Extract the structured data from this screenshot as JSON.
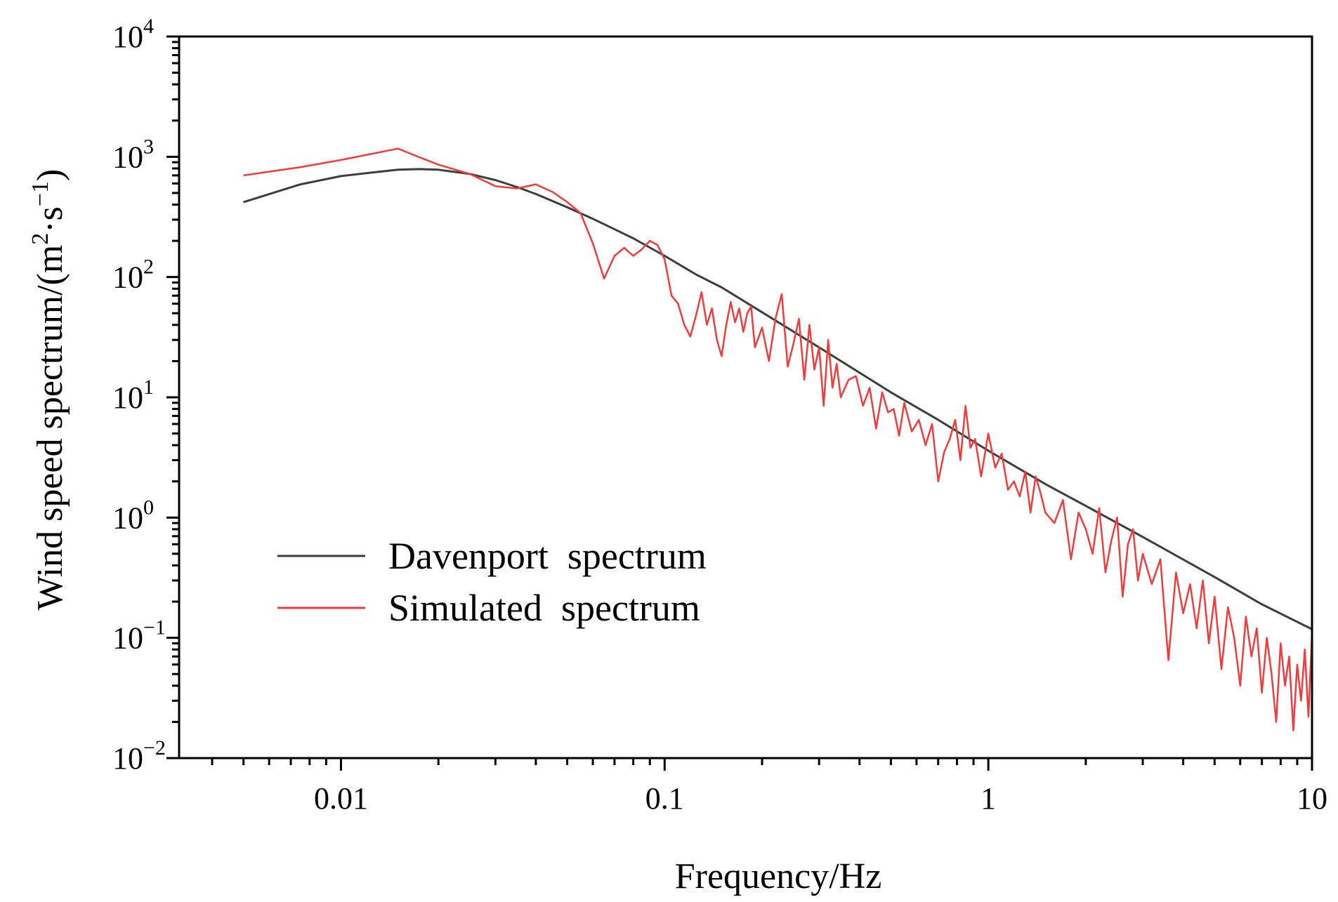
{
  "chart_data": {
    "type": "line",
    "title": "",
    "xlabel": "Frequency/Hz",
    "ylabel_main": "Wind speed spectrum/(m",
    "ylabel_sup1": "2",
    "ylabel_mid": "·s",
    "ylabel_sup2": "−1",
    "ylabel_end": ")",
    "xscale": "log",
    "yscale": "log",
    "xlim": [
      0.003162,
      10
    ],
    "ylim": [
      0.01,
      10000
    ],
    "x_ticks": [
      {
        "value": 0.01,
        "label": "0.01"
      },
      {
        "value": 0.1,
        "label": "0.1"
      },
      {
        "value": 1,
        "label": "1"
      },
      {
        "value": 10,
        "label": "10"
      }
    ],
    "y_ticks": [
      {
        "value": 0.01,
        "base": "10",
        "exp": "−2"
      },
      {
        "value": 0.1,
        "base": "10",
        "exp": "−1"
      },
      {
        "value": 1,
        "base": "10",
        "exp": "0"
      },
      {
        "value": 10,
        "base": "10",
        "exp": "1"
      },
      {
        "value": 100,
        "base": "10",
        "exp": "2"
      },
      {
        "value": 1000,
        "base": "10",
        "exp": "3"
      },
      {
        "value": 10000,
        "base": "10",
        "exp": "4"
      }
    ],
    "legend_position": "lower-left",
    "series": [
      {
        "name": "Davenport  spectrum",
        "color": "#3d3d3d",
        "x": [
          0.005,
          0.0075,
          0.01,
          0.0125,
          0.015,
          0.0175,
          0.02,
          0.025,
          0.03,
          0.035,
          0.04,
          0.05,
          0.06,
          0.08,
          0.1,
          0.125,
          0.15,
          0.2,
          0.3,
          0.5,
          0.7,
          1,
          1.5,
          2,
          3,
          5,
          7,
          10
        ],
        "values": [
          420,
          590,
          690,
          740,
          780,
          790,
          780,
          720,
          640,
          560,
          490,
          380,
          305,
          210,
          150,
          105,
          82,
          51,
          26,
          11,
          6.5,
          3.6,
          1.9,
          1.25,
          0.69,
          0.32,
          0.19,
          0.118
        ]
      },
      {
        "name": "Simulated  spectrum",
        "color": "#f03c3c",
        "x": [
          0.005,
          0.0075,
          0.01,
          0.0125,
          0.015,
          0.0175,
          0.02,
          0.025,
          0.03,
          0.035,
          0.04,
          0.045,
          0.05,
          0.055,
          0.06,
          0.065,
          0.07,
          0.075,
          0.08,
          0.085,
          0.09,
          0.095,
          0.1,
          0.105,
          0.11,
          0.115,
          0.12,
          0.125,
          0.13,
          0.135,
          0.14,
          0.145,
          0.15,
          0.155,
          0.16,
          0.165,
          0.17,
          0.175,
          0.18,
          0.185,
          0.19,
          0.2,
          0.21,
          0.22,
          0.23,
          0.24,
          0.25,
          0.26,
          0.27,
          0.28,
          0.29,
          0.3,
          0.31,
          0.32,
          0.33,
          0.34,
          0.35,
          0.37,
          0.39,
          0.41,
          0.43,
          0.45,
          0.47,
          0.49,
          0.51,
          0.53,
          0.55,
          0.58,
          0.61,
          0.64,
          0.67,
          0.7,
          0.73,
          0.76,
          0.79,
          0.82,
          0.85,
          0.88,
          0.91,
          0.95,
          1.0,
          1.05,
          1.1,
          1.15,
          1.2,
          1.25,
          1.3,
          1.35,
          1.4,
          1.45,
          1.5,
          1.6,
          1.7,
          1.8,
          1.9,
          2.0,
          2.1,
          2.2,
          2.3,
          2.4,
          2.5,
          2.6,
          2.7,
          2.8,
          2.9,
          3.0,
          3.2,
          3.4,
          3.6,
          3.8,
          4.0,
          4.2,
          4.4,
          4.6,
          4.8,
          5.0,
          5.25,
          5.5,
          5.75,
          6.0,
          6.25,
          6.5,
          6.75,
          7.0,
          7.25,
          7.5,
          7.75,
          8.0,
          8.25,
          8.5,
          8.75,
          9.0,
          9.25,
          9.5,
          9.75,
          10.0
        ],
        "values": [
          700,
          820,
          940,
          1060,
          1170,
          990,
          860,
          720,
          570,
          545,
          590,
          510,
          420,
          340,
          190,
          97,
          150,
          175,
          150,
          170,
          200,
          185,
          140,
          70,
          60,
          40,
          32,
          48,
          75,
          40,
          55,
          30,
          22,
          40,
          62,
          42,
          55,
          35,
          50,
          57,
          26,
          38,
          20,
          45,
          72,
          18,
          28,
          45,
          14,
          40,
          17,
          26,
          8.5,
          30,
          12,
          19,
          10,
          14,
          15,
          8.5,
          12,
          5.5,
          11,
          7.5,
          8.0,
          4.8,
          9.0,
          5.2,
          6.5,
          4.0,
          6.0,
          2.0,
          3.5,
          4.5,
          6.5,
          3.0,
          8.5,
          3.8,
          4.5,
          2.2,
          5.0,
          2.6,
          3.4,
          1.7,
          2.0,
          1.5,
          2.4,
          1.1,
          2.2,
          1.6,
          1.1,
          0.9,
          1.4,
          0.45,
          1.1,
          0.8,
          0.5,
          1.2,
          0.35,
          0.65,
          1.0,
          0.22,
          0.6,
          0.8,
          0.3,
          0.5,
          0.28,
          0.45,
          0.065,
          0.35,
          0.16,
          0.28,
          0.12,
          0.3,
          0.09,
          0.22,
          0.055,
          0.18,
          0.1,
          0.04,
          0.15,
          0.07,
          0.12,
          0.035,
          0.1,
          0.05,
          0.02,
          0.09,
          0.04,
          0.07,
          0.017,
          0.06,
          0.03,
          0.08,
          0.022,
          0.11
        ]
      }
    ]
  }
}
